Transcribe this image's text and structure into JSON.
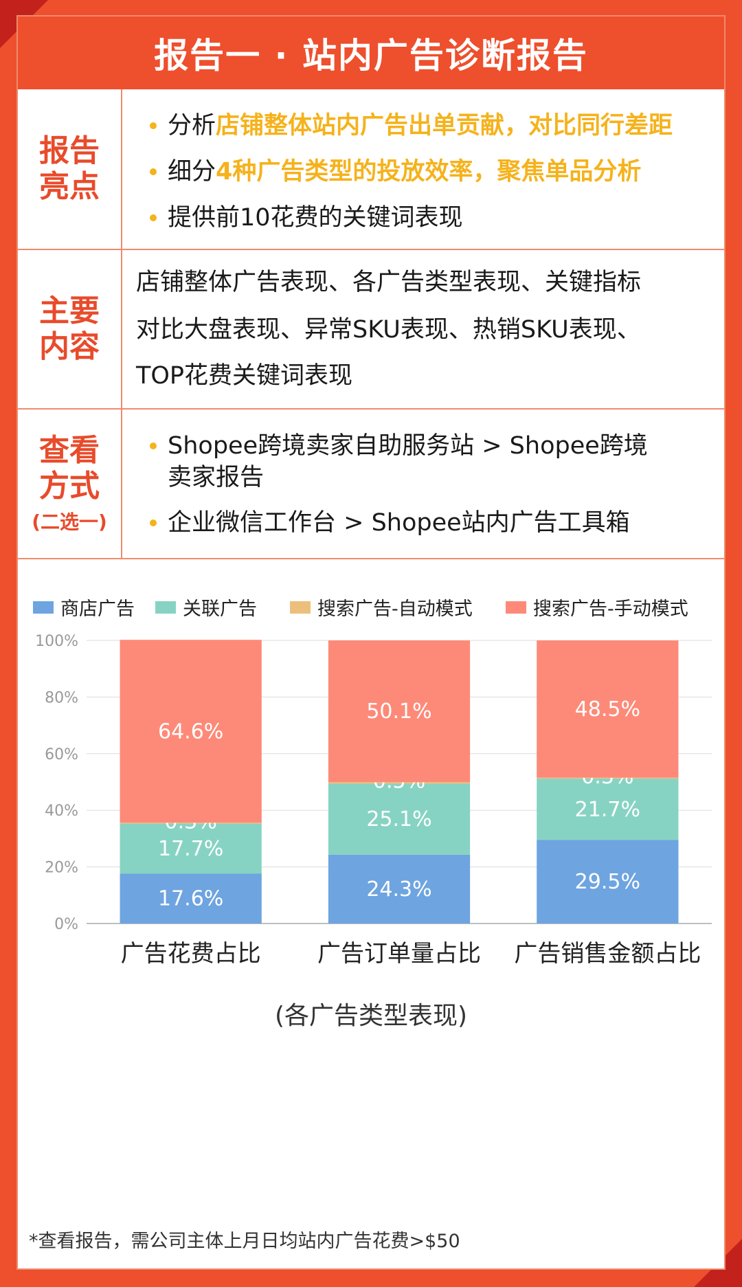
{
  "header": {
    "title": "报告一 · 站内广告诊断报告"
  },
  "highlights": {
    "label_line1": "报告",
    "label_line2": "亮点",
    "items": [
      {
        "prefix": "分析",
        "highlight": "店铺整体站内广告出单贡献，对比同行差距"
      },
      {
        "prefix": "细分",
        "highlight": "4种广告类型的投放效率，聚焦单品分析"
      },
      {
        "prefix": "提供前10花费的关键词表现",
        "highlight": ""
      }
    ]
  },
  "main_content": {
    "label_line1": "主要",
    "label_line2": "内容",
    "lines": [
      "店铺整体广告表现、各广告类型表现、关键指标",
      "对比大盘表现、异常SKU表现、热销SKU表现、",
      "TOP花费关键词表现"
    ]
  },
  "access": {
    "label_line1": "查看",
    "label_line2": "方式",
    "label_sub": "(二选一)",
    "items": [
      {
        "line1": "Shopee跨境卖家自助服务站 > Shopee跨境",
        "line2": "卖家报告"
      },
      {
        "line1": "企业微信工作台 > Shopee站内广告工具箱",
        "line2": ""
      }
    ]
  },
  "chart_data": {
    "type": "bar",
    "stacked": true,
    "categories": [
      "广告花费占比",
      "广告订单量占比",
      "广告销售金额占比"
    ],
    "series": [
      {
        "name": "商店广告",
        "color": "#6ea4e0",
        "values": [
          17.6,
          24.3,
          29.5
        ]
      },
      {
        "name": "关联广告",
        "color": "#87d3c3",
        "values": [
          17.7,
          25.1,
          21.7
        ]
      },
      {
        "name": "搜索广告-自动模式",
        "color": "#ecc07c",
        "values": [
          0.3,
          0.5,
          0.3
        ]
      },
      {
        "name": "搜索广告-手动模式",
        "color": "#fd8a78",
        "values": [
          64.6,
          50.1,
          48.5
        ]
      }
    ],
    "yticks": [
      "0%",
      "20%",
      "40%",
      "60%",
      "80%",
      "100%"
    ],
    "ylim": [
      0,
      100
    ],
    "legend": "top",
    "grid": true,
    "caption": "(各广告类型表现)"
  },
  "footnote": "*查看报告，需公司主体上月日均站内广告花费>$50",
  "colors": {
    "brand": "#ee4f2d",
    "highlight": "#f5b21b"
  }
}
